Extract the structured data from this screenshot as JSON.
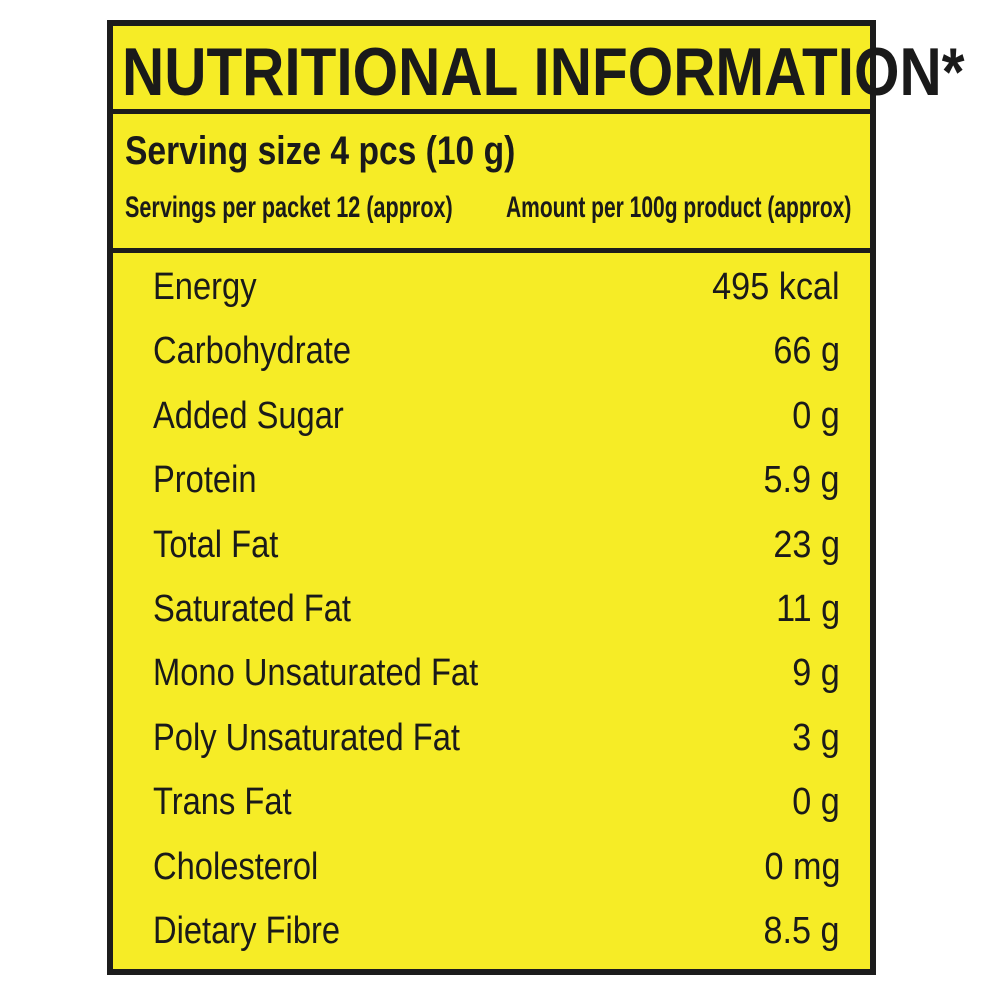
{
  "title": "NUTRITIONAL INFORMATION*",
  "serving_size": "Serving size 4 pcs (10 g)",
  "servings_per_packet": "Servings per packet 12 (approx)",
  "amount_basis": "Amount per 100g product (approx)",
  "nutrients": [
    {
      "label": "Energy",
      "value": "495 kcal"
    },
    {
      "label": "Carbohydrate",
      "value": "66 g"
    },
    {
      "label": "Added Sugar",
      "value": "0 g"
    },
    {
      "label": "Protein",
      "value": "5.9 g"
    },
    {
      "label": "Total Fat",
      "value": "23 g"
    },
    {
      "label": "Saturated Fat",
      "value": "11 g"
    },
    {
      "label": "Mono Unsaturated Fat",
      "value": "9 g"
    },
    {
      "label": "Poly Unsaturated Fat",
      "value": "3 g"
    },
    {
      "label": "Trans Fat",
      "value": "0 g"
    },
    {
      "label": "Cholesterol",
      "value": "0 mg"
    },
    {
      "label": "Dietary Fibre",
      "value": "8.5 g"
    }
  ],
  "colors": {
    "background": "#f6ec26",
    "border": "#1c1c1c",
    "text": "#1a1a1a"
  }
}
